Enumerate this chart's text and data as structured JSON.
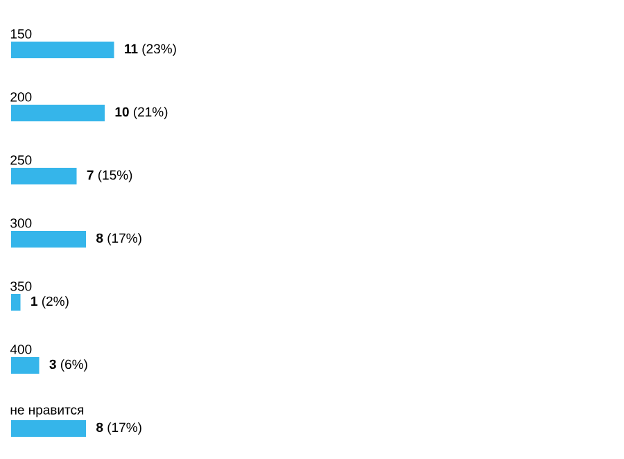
{
  "chart_data": {
    "type": "bar",
    "orientation": "horizontal",
    "color": "#35b5ea",
    "categories": [
      "150",
      "200",
      "250",
      "300",
      "350",
      "400",
      "не нравится"
    ],
    "values": [
      11,
      10,
      7,
      8,
      1,
      3,
      8
    ],
    "value_labels": [
      "**11** (23%)",
      "**10** (21%)",
      "**7** (15%)",
      "**8** (17%)",
      "**1** (2%)",
      "**3** (6%)",
      "**8** (17%)"
    ]
  }
}
